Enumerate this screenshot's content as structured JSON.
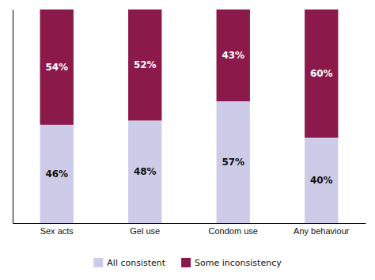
{
  "chart_data": {
    "type": "bar",
    "stacked": true,
    "categories": [
      "Sex acts",
      "Gel use",
      "Condom use",
      "Any behaviour"
    ],
    "series": [
      {
        "name": "All consistent",
        "color": "#cccce8",
        "values": [
          46,
          48,
          57,
          40
        ],
        "value_labels": [
          "46%",
          "48%",
          "57%",
          "40%"
        ]
      },
      {
        "name": "Some inconsistency",
        "color": "#8b1a4a",
        "values": [
          54,
          52,
          43,
          60
        ],
        "value_labels": [
          "54%",
          "52%",
          "43%",
          "60%"
        ]
      }
    ],
    "ylim": [
      0,
      100
    ],
    "yticks": [],
    "tick_labels": "x",
    "data_labels": true,
    "legend": "bottom"
  }
}
